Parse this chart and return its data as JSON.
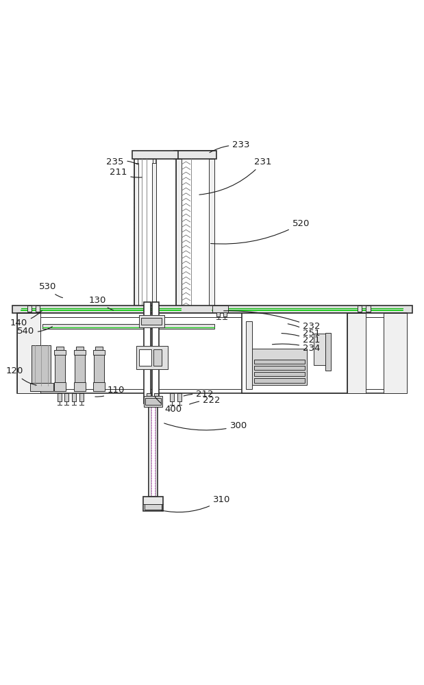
{
  "bg_color": "#ffffff",
  "line_color": "#2d2d2d",
  "light_gray": "#b0b0b0",
  "mid_gray": "#888888",
  "green_line": "#00aa00",
  "hatch_color": "#aaaaaa",
  "label_color": "#1a1a1a",
  "figsize": [
    6.19,
    10.0
  ],
  "dpi": 100
}
